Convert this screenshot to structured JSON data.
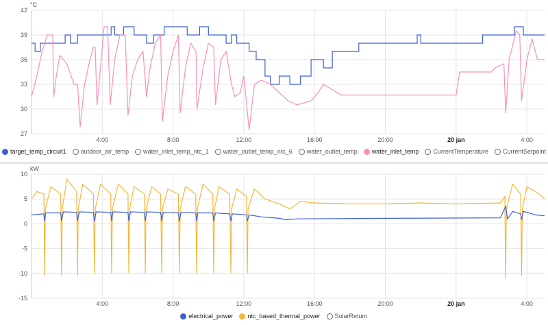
{
  "chart_data": [
    {
      "type": "line",
      "unit": "°C",
      "ylim": [
        27,
        42
      ],
      "yticks": [
        27,
        30,
        33,
        36,
        39,
        42
      ],
      "xlim_hours": [
        0,
        29
      ],
      "xticks": [
        {
          "h": 4,
          "label": "4:00"
        },
        {
          "h": 8,
          "label": "8:00"
        },
        {
          "h": 12,
          "label": "12:00"
        },
        {
          "h": 16,
          "label": "16:00"
        },
        {
          "h": 20,
          "label": "20:00"
        },
        {
          "h": 24,
          "label": "20 jan",
          "bold": true
        },
        {
          "h": 28,
          "label": "4:00"
        }
      ],
      "legend": [
        {
          "name": "target_temp_circuit1",
          "color": "#3f5fd1",
          "active": true
        },
        {
          "name": "outdoor_air_temp",
          "active": false
        },
        {
          "name": "water_inlet_temp_ntc_1",
          "active": false
        },
        {
          "name": "water_outlet_temp_ntc_6",
          "active": false
        },
        {
          "name": "water_outlet_temp",
          "active": false
        },
        {
          "name": "water_inlet_temp",
          "color": "#f98fb9",
          "active": true
        },
        {
          "name": "CurrentTemperature",
          "active": false
        },
        {
          "name": "CurrentSetpoint",
          "active": false
        }
      ],
      "series": [
        {
          "name": "target_temp_circuit1",
          "color": "#3f5fd1",
          "step": true,
          "points": [
            [
              0,
              38
            ],
            [
              0.2,
              37
            ],
            [
              0.5,
              38
            ],
            [
              1.9,
              39
            ],
            [
              2.2,
              38
            ],
            [
              2.6,
              39
            ],
            [
              4.5,
              40
            ],
            [
              4.7,
              39
            ],
            [
              5.2,
              40
            ],
            [
              5.8,
              39
            ],
            [
              6.5,
              38
            ],
            [
              6.9,
              39
            ],
            [
              7.5,
              40
            ],
            [
              8.8,
              39
            ],
            [
              9.5,
              40
            ],
            [
              10,
              39
            ],
            [
              11,
              38
            ],
            [
              11.3,
              39
            ],
            [
              11.6,
              38
            ],
            [
              12.3,
              37
            ],
            [
              12.7,
              36
            ],
            [
              13.2,
              34
            ],
            [
              13.5,
              33
            ],
            [
              14,
              34
            ],
            [
              14.6,
              33
            ],
            [
              15.2,
              34
            ],
            [
              15.8,
              36
            ],
            [
              16.5,
              35
            ],
            [
              17,
              37
            ],
            [
              18.5,
              38
            ],
            [
              21.8,
              39
            ],
            [
              22,
              38
            ],
            [
              25.5,
              39
            ],
            [
              27.3,
              40
            ],
            [
              27.8,
              39
            ],
            [
              29,
              39
            ]
          ]
        },
        {
          "name": "water_inlet_temp",
          "color": "#f98fb9",
          "step": false,
          "points": [
            [
              0,
              31.5
            ],
            [
              0.3,
              34
            ],
            [
              0.6,
              37
            ],
            [
              0.9,
              39
            ],
            [
              1.2,
              39
            ],
            [
              1.25,
              31.5
            ],
            [
              1.4,
              34
            ],
            [
              1.6,
              36.5
            ],
            [
              2.0,
              35.5
            ],
            [
              2.4,
              33
            ],
            [
              2.6,
              33
            ],
            [
              2.75,
              27.8
            ],
            [
              3.0,
              33
            ],
            [
              3.3,
              36
            ],
            [
              3.5,
              37.5
            ],
            [
              3.6,
              37.5
            ],
            [
              3.7,
              30.5
            ],
            [
              3.9,
              35
            ],
            [
              4.1,
              40
            ],
            [
              4.3,
              40
            ],
            [
              4.45,
              30.5
            ],
            [
              4.7,
              36
            ],
            [
              5.0,
              39
            ],
            [
              5.3,
              39
            ],
            [
              5.45,
              29.2
            ],
            [
              5.7,
              34
            ],
            [
              6.0,
              36
            ],
            [
              6.3,
              37
            ],
            [
              6.5,
              31.5
            ],
            [
              6.7,
              35
            ],
            [
              7.0,
              38
            ],
            [
              7.3,
              39
            ],
            [
              7.4,
              28.5
            ],
            [
              7.7,
              34
            ],
            [
              8.0,
              37
            ],
            [
              8.3,
              39
            ],
            [
              8.4,
              29.5
            ],
            [
              8.7,
              35
            ],
            [
              9.0,
              38
            ],
            [
              9.3,
              37
            ],
            [
              9.35,
              30
            ],
            [
              9.7,
              35
            ],
            [
              10.0,
              38
            ],
            [
              10.3,
              37.5
            ],
            [
              10.4,
              30.5
            ],
            [
              10.7,
              36
            ],
            [
              11.0,
              37
            ],
            [
              11.3,
              33
            ],
            [
              11.5,
              31.5
            ],
            [
              11.8,
              32
            ],
            [
              12.0,
              34
            ],
            [
              12.3,
              27.5
            ],
            [
              12.6,
              33
            ],
            [
              13,
              33.5
            ],
            [
              13.5,
              33
            ],
            [
              14,
              32
            ],
            [
              14.5,
              31
            ],
            [
              15,
              30.5
            ],
            [
              15.8,
              31
            ],
            [
              16.2,
              32
            ],
            [
              16.5,
              33
            ],
            [
              17.5,
              31.7
            ],
            [
              24,
              31.7
            ],
            [
              24.2,
              34.5
            ],
            [
              26,
              34.5
            ],
            [
              26.2,
              35
            ],
            [
              26.7,
              35.5
            ],
            [
              26.8,
              29.5
            ],
            [
              27,
              36
            ],
            [
              27.4,
              39.5
            ],
            [
              27.6,
              39
            ],
            [
              27.7,
              31
            ],
            [
              28,
              36
            ],
            [
              28.3,
              38.5
            ],
            [
              28.6,
              36
            ],
            [
              29,
              36
            ]
          ]
        }
      ]
    },
    {
      "type": "line",
      "unit": "kW",
      "ylim": [
        -15,
        10
      ],
      "yticks": [
        -15,
        -10,
        -5,
        0,
        5,
        10
      ],
      "xlim_hours": [
        0,
        29
      ],
      "xticks": [
        {
          "h": 4,
          "label": "4:00"
        },
        {
          "h": 8,
          "label": "8:00"
        },
        {
          "h": 12,
          "label": "12:00"
        },
        {
          "h": 16,
          "label": "16:00"
        },
        {
          "h": 20,
          "label": "20:00"
        },
        {
          "h": 24,
          "label": "20 jan",
          "bold": true
        },
        {
          "h": 28,
          "label": "4:00"
        }
      ],
      "legend": [
        {
          "name": "electrical_power",
          "color": "#3f5fd1",
          "active": true
        },
        {
          "name": "ntc_based_thermal_power",
          "color": "#f4b73a",
          "active": true
        },
        {
          "name": "SolarReturn",
          "active": false
        }
      ],
      "series": [
        {
          "name": "ntc_based_thermal_power",
          "color": "#f4b73a",
          "step": false,
          "points": [
            [
              0,
              5
            ],
            [
              0.3,
              6.5
            ],
            [
              0.7,
              6
            ],
            [
              0.74,
              -10.5
            ],
            [
              0.78,
              3
            ],
            [
              1.1,
              7.5
            ],
            [
              1.65,
              6
            ],
            [
              1.7,
              -10.5
            ],
            [
              1.74,
              3
            ],
            [
              2.0,
              9
            ],
            [
              2.55,
              6.5
            ],
            [
              2.6,
              -10.5
            ],
            [
              2.64,
              3
            ],
            [
              2.9,
              8
            ],
            [
              3.5,
              6
            ],
            [
              3.56,
              -10
            ],
            [
              3.6,
              3
            ],
            [
              3.9,
              8
            ],
            [
              4.48,
              6
            ],
            [
              4.53,
              -10
            ],
            [
              4.57,
              3
            ],
            [
              4.9,
              8
            ],
            [
              5.45,
              6
            ],
            [
              5.5,
              -10
            ],
            [
              5.54,
              3
            ],
            [
              5.8,
              7.5
            ],
            [
              6.38,
              6
            ],
            [
              6.43,
              -10
            ],
            [
              6.47,
              3
            ],
            [
              6.8,
              7.5
            ],
            [
              7.3,
              6
            ],
            [
              7.36,
              -10
            ],
            [
              7.4,
              3
            ],
            [
              7.7,
              7
            ],
            [
              8.3,
              6
            ],
            [
              8.36,
              -10
            ],
            [
              8.4,
              3
            ],
            [
              8.7,
              7.5
            ],
            [
              9.28,
              6
            ],
            [
              9.33,
              -10
            ],
            [
              9.37,
              3
            ],
            [
              9.7,
              8
            ],
            [
              10.25,
              6
            ],
            [
              10.3,
              -10
            ],
            [
              10.34,
              3
            ],
            [
              10.6,
              7.5
            ],
            [
              11.2,
              6
            ],
            [
              11.27,
              -10
            ],
            [
              11.31,
              3
            ],
            [
              11.6,
              7
            ],
            [
              12.15,
              5.5
            ],
            [
              12.2,
              -10
            ],
            [
              12.24,
              3
            ],
            [
              12.6,
              7
            ],
            [
              13.2,
              5
            ],
            [
              14,
              4
            ],
            [
              14.6,
              3
            ],
            [
              15.2,
              4.5
            ],
            [
              16,
              4.2
            ],
            [
              18,
              4
            ],
            [
              20,
              4
            ],
            [
              22,
              4.2
            ],
            [
              24,
              4
            ],
            [
              26.5,
              4.2
            ],
            [
              26.75,
              5.5
            ],
            [
              26.8,
              -11
            ],
            [
              26.84,
              3
            ],
            [
              27.2,
              8
            ],
            [
              27.65,
              6
            ],
            [
              27.7,
              -10.5
            ],
            [
              27.74,
              3
            ],
            [
              28,
              7.5
            ],
            [
              28.7,
              6
            ],
            [
              29,
              5
            ]
          ]
        },
        {
          "name": "electrical_power",
          "color": "#3f5fd1",
          "step": false,
          "points": [
            [
              0,
              1.8
            ],
            [
              0.7,
              2
            ],
            [
              0.74,
              0.6
            ],
            [
              0.8,
              2.2
            ],
            [
              1.65,
              2.2
            ],
            [
              1.7,
              0.6
            ],
            [
              1.8,
              2.4
            ],
            [
              2.55,
              2.3
            ],
            [
              2.6,
              0.6
            ],
            [
              2.7,
              2.4
            ],
            [
              3.5,
              2.3
            ],
            [
              3.56,
              0.6
            ],
            [
              3.65,
              2.4
            ],
            [
              4.48,
              2.3
            ],
            [
              4.53,
              0.6
            ],
            [
              4.6,
              2.4
            ],
            [
              5.45,
              2.3
            ],
            [
              5.5,
              0.6
            ],
            [
              5.6,
              2.4
            ],
            [
              6.38,
              2.3
            ],
            [
              6.43,
              0.6
            ],
            [
              6.5,
              2.4
            ],
            [
              7.3,
              2.3
            ],
            [
              7.36,
              0.6
            ],
            [
              7.45,
              2.3
            ],
            [
              8.3,
              2.2
            ],
            [
              8.36,
              0.6
            ],
            [
              8.45,
              2.3
            ],
            [
              9.28,
              2.2
            ],
            [
              9.33,
              0.6
            ],
            [
              9.4,
              2.2
            ],
            [
              10.25,
              2.2
            ],
            [
              10.3,
              0.6
            ],
            [
              10.4,
              2.2
            ],
            [
              11.2,
              2
            ],
            [
              11.27,
              0.6
            ],
            [
              11.35,
              2
            ],
            [
              12.15,
              1.8
            ],
            [
              12.2,
              0.6
            ],
            [
              12.3,
              1.8
            ],
            [
              13,
              1.4
            ],
            [
              14,
              1.1
            ],
            [
              14.4,
              0.8
            ],
            [
              15,
              1
            ],
            [
              20,
              1.1
            ],
            [
              26.5,
              1.2
            ],
            [
              26.8,
              3.5
            ],
            [
              26.9,
              1
            ],
            [
              27.2,
              2.5
            ],
            [
              27.65,
              2
            ],
            [
              27.7,
              0.8
            ],
            [
              27.8,
              2.5
            ],
            [
              28.5,
              1.8
            ],
            [
              29,
              1.6
            ]
          ]
        }
      ]
    }
  ]
}
